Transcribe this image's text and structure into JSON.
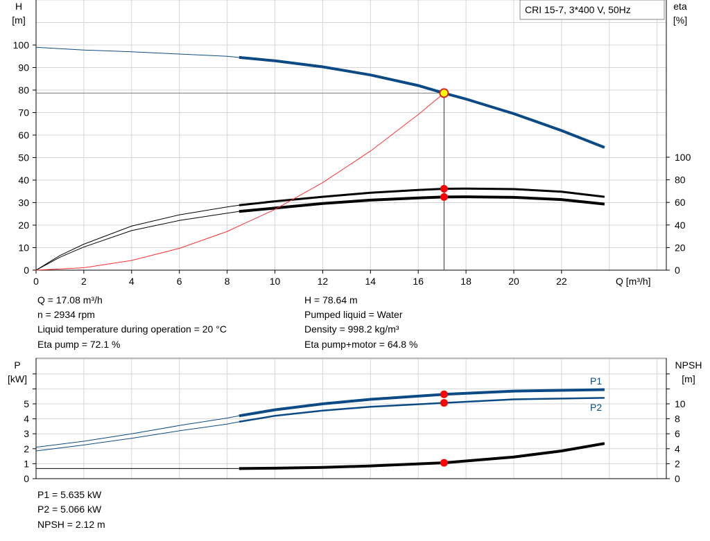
{
  "chart_data": [
    {
      "type": "line",
      "title": "CRI 15-7, 3*400 V, 50Hz",
      "xlabel": "Q [m³/h]",
      "ylabel": "H\n[m]",
      "ylabel_name": "H",
      "ylabel_unit": "[m]",
      "y2label_name": "eta",
      "y2label_unit": "[%]",
      "xlim": [
        0,
        26
      ],
      "ylim": [
        0,
        120
      ],
      "y2lim": [
        0,
        100
      ],
      "xticks": [
        0,
        2,
        4,
        6,
        8,
        10,
        12,
        14,
        16,
        18,
        20,
        22
      ],
      "yticks": [
        0,
        10,
        20,
        30,
        40,
        50,
        60,
        70,
        80,
        90,
        100
      ],
      "y2ticks": [
        0,
        20,
        40,
        60,
        80,
        100
      ],
      "grid": true,
      "series": [
        {
          "axis": "H",
          "color": "#0b4a85",
          "thin_until": 8.5,
          "x": [
            0,
            2,
            4,
            6,
            8,
            8.5,
            10,
            12,
            14,
            16,
            17.08,
            18,
            20,
            22,
            23.8
          ],
          "y": [
            99,
            97.8,
            97,
            96,
            95,
            94.5,
            93,
            90.3,
            86.7,
            82,
            78.64,
            76,
            69.5,
            62,
            54.5
          ]
        },
        {
          "axis": "eta",
          "color": "#000000",
          "thin_until": 8.5,
          "x": [
            0,
            1,
            2,
            4,
            6,
            8,
            8.5,
            10,
            12,
            14,
            16,
            17.08,
            18,
            20,
            22,
            23.8
          ],
          "y": [
            0,
            13,
            23,
            39,
            49,
            56,
            57.5,
            61,
            65,
            68.5,
            71,
            72.1,
            72.3,
            71.8,
            69.5,
            65
          ]
        },
        {
          "axis": "eta",
          "color": "#000000",
          "thin_until": 8.5,
          "x": [
            0,
            1,
            2,
            4,
            6,
            8,
            8.5,
            10,
            12,
            14,
            16,
            17.08,
            18,
            20,
            22,
            23.8
          ],
          "y": [
            0,
            11.5,
            20.5,
            35,
            44,
            50.5,
            52,
            55,
            59,
            62,
            64,
            64.8,
            65,
            64.5,
            62.5,
            58.5
          ]
        },
        {
          "axis": "H",
          "color": "#ff3030",
          "thin_until": 99,
          "x": [
            0,
            2,
            4,
            6,
            8,
            10,
            12,
            14,
            16,
            17.08
          ],
          "y": [
            0,
            1.08,
            4.3,
            9.7,
            17.2,
            27,
            38.9,
            52.9,
            69.1,
            78.64
          ]
        }
      ],
      "duty_point": {
        "Q": 17.08,
        "H": 78.64,
        "eta_pump": 72.1,
        "eta_pump_motor": 64.8
      }
    },
    {
      "type": "line",
      "ylabel_name": "P",
      "ylabel_unit": "[kW]",
      "y2label_name": "NPSH",
      "y2label_unit": "[m]",
      "xlim": [
        0,
        26
      ],
      "ylim": [
        0,
        8
      ],
      "y2lim": [
        0,
        16
      ],
      "yticks": [
        0,
        1,
        2,
        3,
        4,
        5
      ],
      "y2ticks": [
        0,
        2,
        4,
        6,
        8,
        10
      ],
      "grid": true,
      "series": [
        {
          "name": "P1",
          "axis": "P",
          "color": "#0b4a85",
          "thin_until": 8.5,
          "x": [
            0,
            2,
            4,
            6,
            8,
            8.5,
            10,
            12,
            14,
            17.08,
            20,
            23.8
          ],
          "y": [
            2.1,
            2.5,
            3.0,
            3.55,
            4.05,
            4.2,
            4.6,
            5.0,
            5.3,
            5.635,
            5.85,
            5.95
          ]
        },
        {
          "name": "P2",
          "axis": "P",
          "color": "#0b4a85",
          "thin_until": 8.5,
          "x": [
            0,
            2,
            4,
            6,
            8,
            8.5,
            10,
            12,
            14,
            17.08,
            20,
            23.8
          ],
          "y": [
            1.85,
            2.25,
            2.7,
            3.2,
            3.65,
            3.8,
            4.2,
            4.55,
            4.8,
            5.066,
            5.3,
            5.4
          ]
        },
        {
          "axis": "NPSH",
          "color": "#000000",
          "thin_until": 8.5,
          "x": [
            0,
            8.5,
            10,
            12,
            14,
            17.08,
            20,
            22,
            23.8
          ],
          "y": [
            1.35,
            1.35,
            1.4,
            1.5,
            1.7,
            2.12,
            2.9,
            3.7,
            4.7
          ]
        }
      ],
      "duty_point": {
        "P1": 5.635,
        "P2": 5.066,
        "NPSH": 2.12
      }
    }
  ],
  "info_top": {
    "q": "Q = 17.08 m³/h",
    "n": "n = 2934 rpm",
    "temp": "Liquid temperature during operation = 20 °C",
    "eta": "Eta pump = 72.1 %",
    "h": "H = 78.64 m",
    "liquid": "Pumped liquid = Water",
    "density": "Density = 998.2 kg/m³",
    "eta_pm": "Eta pump+motor = 64.8 %"
  },
  "info_bottom": {
    "p1": "P1 = 5.635 kW",
    "p2": "P2 = 5.066 kW",
    "npsh": "NPSH = 2.12 m"
  }
}
